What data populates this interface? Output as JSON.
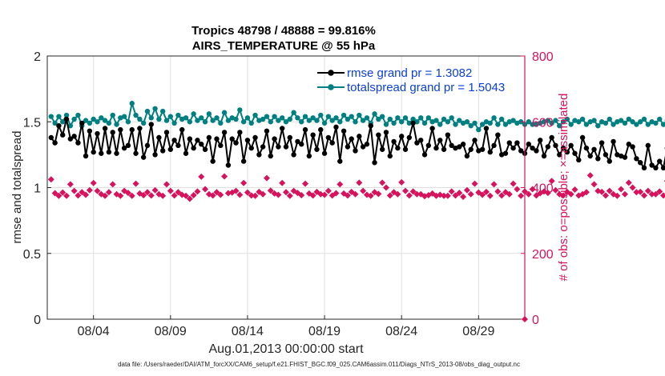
{
  "chart_data": {
    "type": "line",
    "title": "Tropics 48798 / 48888 = 99.816%",
    "subtitle": "AIRS_TEMPERATURE @ 55 hPa",
    "xlabel": "Aug.01,2013 00:00:00 start",
    "ylabel": "rmse and totalspread",
    "y2label": "# of obs: o=possible; ×=assimilated",
    "footer": "data file: /Users/raeder/DAI/ATM_forcXX/CAM6_setup/f.e21.FHIST_BGC.f09_025.CAM6assim.011/Diags_NTrS_2013-08/obs_diag_output.nc",
    "xlim": [
      1.0,
      32.0
    ],
    "ylim": [
      0,
      2
    ],
    "y2lim": [
      0,
      800
    ],
    "x_ticks": [
      4,
      9,
      14,
      19,
      24,
      29
    ],
    "x_tick_labels": [
      "08/04",
      "08/09",
      "08/14",
      "08/19",
      "08/24",
      "08/29"
    ],
    "y_ticks": [
      0,
      0.5,
      1,
      1.5,
      2
    ],
    "y_tick_labels": [
      "0",
      "0.5",
      "1",
      "1.5",
      "2"
    ],
    "y2_ticks": [
      0,
      200,
      400,
      600,
      800
    ],
    "y2_tick_labels": [
      "0",
      "200",
      "400",
      "600",
      "800"
    ],
    "grid": true,
    "legend_position": "top-right",
    "colors": {
      "rmse": "#000000",
      "spread": "#008080",
      "obs": "#d6135c"
    },
    "series": [
      {
        "name": "rmse grand pr = 1.3082",
        "axis": "left",
        "x_start": 1.25,
        "x_step": 0.25,
        "values": [
          1.38,
          1.34,
          1.47,
          1.4,
          1.52,
          1.37,
          1.39,
          1.34,
          1.49,
          1.24,
          1.43,
          1.27,
          1.41,
          1.26,
          1.45,
          1.27,
          1.42,
          1.26,
          1.44,
          1.3,
          1.32,
          1.44,
          1.26,
          1.45,
          1.23,
          1.32,
          1.48,
          1.25,
          1.38,
          1.28,
          1.42,
          1.29,
          1.36,
          1.32,
          1.44,
          1.26,
          1.37,
          1.3,
          1.36,
          1.33,
          1.29,
          1.38,
          1.2,
          1.37,
          1.32,
          1.42,
          1.17,
          1.37,
          1.34,
          1.42,
          1.2,
          1.36,
          1.3,
          1.38,
          1.25,
          1.31,
          1.43,
          1.24,
          1.37,
          1.31,
          1.45,
          1.31,
          1.38,
          1.25,
          1.35,
          1.33,
          1.44,
          1.24,
          1.4,
          1.29,
          1.44,
          1.26,
          1.38,
          1.34,
          1.46,
          1.2,
          1.43,
          1.31,
          1.37,
          1.28,
          1.39,
          1.31,
          1.33,
          1.47,
          1.19,
          1.4,
          1.29,
          1.42,
          1.24,
          1.35,
          1.3,
          1.39,
          1.29,
          1.38,
          1.49,
          1.34,
          1.36,
          1.25,
          1.32,
          1.45,
          1.3,
          1.36,
          1.29,
          1.4,
          1.32,
          1.3,
          1.31,
          1.33,
          1.24,
          1.29,
          1.36,
          1.28,
          1.29,
          1.45,
          1.27,
          1.32,
          1.4,
          1.25,
          1.26,
          1.34,
          1.3,
          1.34,
          1.28,
          1.26,
          1.33,
          1.3,
          1.28,
          1.36,
          1.24,
          1.31,
          1.38,
          1.32,
          1.25,
          1.3,
          1.27,
          1.32,
          1.26,
          1.21,
          1.38,
          1.3,
          1.24,
          1.29,
          1.22,
          1.34,
          1.25,
          1.2,
          1.35,
          1.25,
          1.24,
          1.23,
          1.33,
          1.31,
          1.22,
          1.19,
          1.15,
          1.32,
          1.17,
          1.15,
          1.2,
          1.15,
          1.3,
          1.21,
          1.05,
          1.32,
          1.11,
          1.19,
          1.28,
          1.21,
          1.12,
          1.36,
          1.18,
          1.31,
          1.24,
          1.29,
          1.19,
          1.28,
          1.32,
          1.19,
          1.22,
          1.38,
          1.44,
          1.35,
          1.24,
          1.26,
          1.27,
          1.28,
          1.27,
          1.25
        ]
      },
      {
        "name": "totalspread grand pr = 1.5043",
        "axis": "left",
        "x_start": 1.25,
        "x_step": 0.25,
        "values": [
          1.54,
          1.49,
          1.54,
          1.5,
          1.55,
          1.47,
          1.52,
          1.55,
          1.47,
          1.51,
          1.49,
          1.52,
          1.5,
          1.53,
          1.51,
          1.49,
          1.55,
          1.48,
          1.53,
          1.54,
          1.5,
          1.64,
          1.55,
          1.52,
          1.49,
          1.58,
          1.53,
          1.6,
          1.52,
          1.58,
          1.51,
          1.54,
          1.49,
          1.55,
          1.52,
          1.53,
          1.5,
          1.56,
          1.51,
          1.53,
          1.5,
          1.56,
          1.51,
          1.53,
          1.49,
          1.57,
          1.51,
          1.53,
          1.52,
          1.59,
          1.5,
          1.53,
          1.49,
          1.55,
          1.51,
          1.52,
          1.54,
          1.5,
          1.54,
          1.51,
          1.53,
          1.5,
          1.52,
          1.57,
          1.53,
          1.5,
          1.54,
          1.51,
          1.53,
          1.51,
          1.55,
          1.49,
          1.54,
          1.51,
          1.53,
          1.5,
          1.55,
          1.52,
          1.54,
          1.5,
          1.55,
          1.51,
          1.53,
          1.49,
          1.56,
          1.52,
          1.54,
          1.48,
          1.52,
          1.49,
          1.53,
          1.5,
          1.53,
          1.49,
          1.52,
          1.5,
          1.53,
          1.49,
          1.53,
          1.5,
          1.51,
          1.48,
          1.52,
          1.5,
          1.53,
          1.48,
          1.51,
          1.49,
          1.5,
          1.47,
          1.49,
          1.44,
          1.48,
          1.5,
          1.49,
          1.53,
          1.48,
          1.52,
          1.48,
          1.5,
          1.51,
          1.49,
          1.5,
          1.48,
          1.5,
          1.48,
          1.48,
          1.49,
          1.5,
          1.51,
          1.49,
          1.51,
          1.47,
          1.5,
          1.52,
          1.48,
          1.51,
          1.5,
          1.52,
          1.48,
          1.5,
          1.51,
          1.47,
          1.5,
          1.49,
          1.52,
          1.48,
          1.5,
          1.51,
          1.49,
          1.52,
          1.5,
          1.48,
          1.5,
          1.52,
          1.48,
          1.5,
          1.49,
          1.52,
          1.48,
          1.51,
          1.49,
          1.52,
          1.48,
          1.5,
          1.49,
          1.53,
          1.47,
          1.51,
          1.49,
          1.52,
          1.48,
          1.5,
          1.51,
          1.53,
          1.49,
          1.51,
          1.48,
          1.5,
          1.52,
          1.48,
          1.5,
          1.49,
          1.52,
          1.5,
          1.48,
          1.5,
          1.47
        ]
      },
      {
        "name": "# of obs assimilated",
        "axis": "right",
        "x_start": 1.25,
        "x_step": 0.25,
        "values": [
          425,
          383,
          375,
          385,
          375,
          410,
          390,
          376,
          386,
          378,
          392,
          414,
          390,
          380,
          375,
          386,
          410,
          380,
          375,
          390,
          384,
          375,
          412,
          382,
          377,
          386,
          376,
          392,
          380,
          375,
          410,
          390,
          376,
          386,
          378,
          375,
          366,
          377,
          388,
          433,
          395,
          380,
          376,
          386,
          378,
          434,
          383,
          385,
          390,
          378,
          414,
          385,
          376,
          375,
          387,
          380,
          429,
          391,
          382,
          378,
          414,
          386,
          375,
          390,
          384,
          377,
          412,
          382,
          376,
          387,
          380,
          378,
          390,
          376,
          383,
          410,
          382,
          376,
          387,
          380,
          415,
          390,
          378,
          375,
          386,
          381,
          415,
          400,
          376,
          386,
          380,
          416,
          390,
          376,
          388,
          380,
          380,
          374,
          377,
          382,
          375,
          378,
          375,
          375,
          388,
          376,
          384,
          372,
          392,
          380,
          412,
          385,
          378,
          387,
          375,
          410,
          388,
          376,
          386,
          380,
          412,
          395,
          375,
          388,
          380,
          395,
          376,
          383,
          388,
          384,
          420,
          392,
          380,
          376,
          387,
          380,
          394,
          376,
          380,
          386,
          437,
          410,
          390,
          387,
          376,
          390,
          380,
          375,
          395,
          380,
          415,
          400,
          386,
          387,
          376,
          390,
          380,
          380,
          388,
          376,
          420,
          400,
          380,
          386,
          376,
          390,
          378,
          380,
          420,
          396,
          382,
          376,
          386,
          378,
          384,
          420,
          410,
          400,
          390,
          386,
          380,
          378,
          375,
          378,
          390,
          385,
          388,
          376,
          382,
          385
        ]
      }
    ],
    "obs_end_marker": {
      "x": 32.0,
      "value": 0
    }
  }
}
